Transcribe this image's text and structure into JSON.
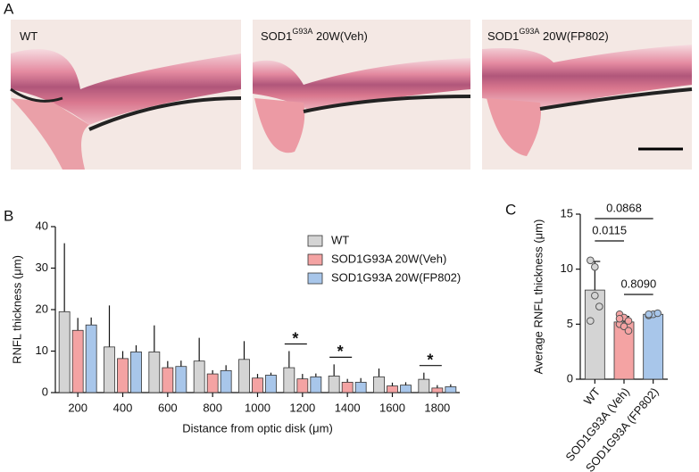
{
  "panel_a": {
    "label": "A",
    "images": [
      {
        "base": "WT"
      },
      {
        "base": "SOD1",
        "sup": "G93A",
        "rest": " 20W(Veh)"
      },
      {
        "base": "SOD1",
        "sup": "G93A",
        "rest": " 20W(FP802)"
      }
    ]
  },
  "chart_data": [
    {
      "type": "bar",
      "panel": "B",
      "ylabel": "RNFL thickness (μm)",
      "xlabel": "Distance from optic disk (μm)",
      "categories": [
        "200",
        "400",
        "600",
        "800",
        "1000",
        "1200",
        "1400",
        "1600",
        "1800"
      ],
      "ylim": [
        0,
        40
      ],
      "yticks": [
        0,
        10,
        20,
        30,
        40
      ],
      "series": [
        {
          "name": "WT",
          "color": "#d4d4d4",
          "values": [
            19.5,
            11,
            9.8,
            7.6,
            8,
            6,
            4,
            3.8,
            3.2
          ],
          "errors": [
            16.5,
            10,
            6.4,
            5.6,
            4.4,
            4,
            2.8,
            2,
            1.6
          ]
        },
        {
          "name": "SOD1G93A 20W(Veh)",
          "color": "#f4a3a3",
          "values": [
            15,
            8.2,
            6,
            4.5,
            3.5,
            3.3,
            2.5,
            1.6,
            1.1
          ],
          "errors": [
            3,
            1.8,
            1.6,
            0.9,
            1,
            1.2,
            0.8,
            0.8,
            0.7
          ]
        },
        {
          "name": "SOD1G93A 20W(FP802)",
          "color": "#a8c6ea",
          "values": [
            16.3,
            9.8,
            6.3,
            5.3,
            4.2,
            3.8,
            2.5,
            1.8,
            1.4
          ],
          "errors": [
            1.8,
            1.6,
            1.4,
            1.3,
            0.6,
            0.8,
            1,
            0.7,
            0.6
          ]
        }
      ],
      "annotations": [
        {
          "text": "*",
          "x": "1200"
        },
        {
          "text": "*",
          "x": "1400"
        },
        {
          "text": "*",
          "x": "1800"
        }
      ]
    },
    {
      "type": "bar",
      "panel": "C",
      "ylabel": "Average RNFL thickness (μm)",
      "categories": [
        "WT",
        "SOD1G93A (Veh)",
        "SOD1G93A (FP802)"
      ],
      "colors": [
        "#d4d4d4",
        "#f4a3a3",
        "#a8c6ea"
      ],
      "values": [
        8.1,
        5.2,
        5.9
      ],
      "errors": [
        2.6,
        0.5,
        0.15
      ],
      "points": [
        [
          10.8,
          10.2,
          6.6,
          5.3,
          7.6
        ],
        [
          5.9,
          5.6,
          5.3,
          5.0,
          4.8,
          4.4,
          5.5
        ],
        [
          5.8,
          5.9,
          6.0,
          5.9
        ]
      ],
      "ylim": [
        0,
        15
      ],
      "yticks": [
        0,
        5,
        10,
        15
      ],
      "comparisons": [
        {
          "pair": [
            "WT",
            "SOD1G93A (Veh)"
          ],
          "label": "0.0115"
        },
        {
          "pair": [
            "WT",
            "SOD1G93A (FP802)"
          ],
          "label": "0.0868"
        },
        {
          "pair": [
            "SOD1G93A (Veh)",
            "SOD1G93A (FP802)"
          ],
          "label": "0.8090"
        }
      ]
    }
  ]
}
